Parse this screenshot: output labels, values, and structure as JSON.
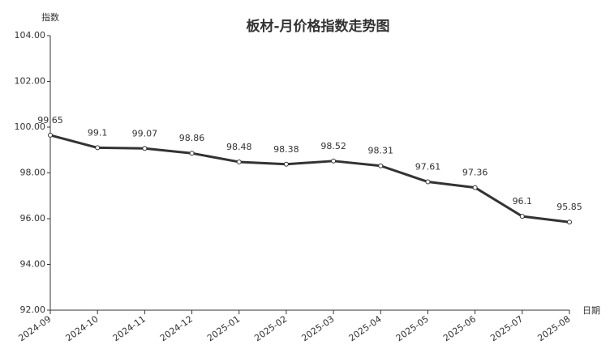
{
  "chart_data": {
    "type": "line",
    "title": "板材-月价格指数走势图",
    "y_label": "指数",
    "x_label": "日期",
    "categories": [
      "2024-09",
      "2024-10",
      "2024-11",
      "2024-12",
      "2025-01",
      "2025-02",
      "2025-03",
      "2025-04",
      "2025-05",
      "2025-06",
      "2025-07",
      "2025-08"
    ],
    "values": [
      99.65,
      99.1,
      99.07,
      98.86,
      98.48,
      98.38,
      98.52,
      98.31,
      97.61,
      97.36,
      96.1,
      95.85
    ],
    "color": "#333333",
    "ylim": [
      92,
      104
    ],
    "yticks": [
      {
        "value": 92,
        "label": "92.00"
      },
      {
        "value": 94,
        "label": "94.00"
      },
      {
        "value": 96,
        "label": "96.00"
      },
      {
        "value": 98,
        "label": "98.00"
      },
      {
        "value": 100,
        "label": "100.00"
      },
      {
        "value": 102,
        "label": "102.00"
      },
      {
        "value": 104,
        "label": "104.00"
      }
    ],
    "grid": false
  }
}
